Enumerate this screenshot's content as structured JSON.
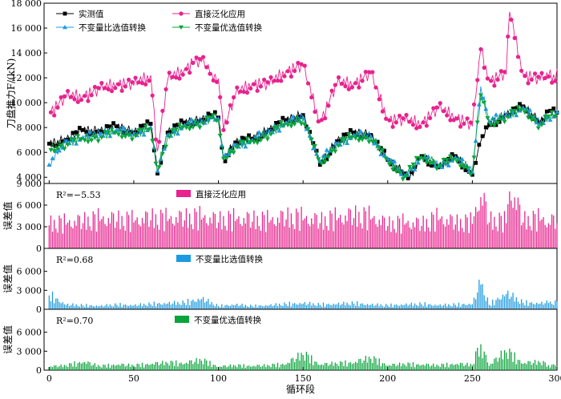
{
  "chart_data": [
    {
      "type": "line",
      "ylabel": "刀盘推力F/(kN)",
      "xlim": [
        -3,
        300
      ],
      "ylim": [
        3500,
        18000
      ],
      "yticks": [
        4000,
        6000,
        8000,
        10000,
        12000,
        14000,
        16000,
        18000
      ],
      "ytick_labels": [
        "4 000",
        "6 000",
        "8 000",
        "10 000",
        "12 000",
        "14 000",
        "16 000",
        "18 000"
      ],
      "legend": [
        "实测值",
        "直接泛化应用",
        "不变量比选值转换",
        "不变量优选值转换"
      ],
      "legend_position": "top",
      "grid": false,
      "colors": {
        "measured": "#000000",
        "direct": "#e8228e",
        "ratio": "#1e9be0",
        "optimal": "#0aa43c"
      },
      "series": [
        {
          "name": "实测值",
          "x": [
            0,
            10,
            20,
            30,
            40,
            50,
            60,
            64,
            70,
            80,
            90,
            96,
            100,
            103,
            110,
            120,
            130,
            140,
            150,
            160,
            170,
            180,
            190,
            200,
            210,
            213,
            220,
            230,
            240,
            250,
            255,
            260,
            270,
            280,
            290,
            295
          ],
          "values": [
            6700,
            7000,
            7800,
            7700,
            8100,
            7600,
            8300,
            4300,
            7600,
            8400,
            8600,
            9000,
            8800,
            5400,
            6800,
            7100,
            7800,
            8600,
            9000,
            5000,
            6900,
            7600,
            7400,
            5400,
            4300,
            3900,
            5700,
            4800,
            5700,
            4200,
            6900,
            8200,
            9000,
            9700,
            8400,
            9200
          ]
        },
        {
          "name": "直接泛化应用",
          "x": [
            0,
            10,
            20,
            30,
            40,
            50,
            60,
            64,
            70,
            80,
            85,
            90,
            96,
            100,
            103,
            110,
            120,
            130,
            140,
            150,
            160,
            170,
            180,
            190,
            200,
            210,
            220,
            230,
            240,
            250,
            255,
            260,
            270,
            272,
            280,
            290,
            295
          ],
          "values": [
            9200,
            10400,
            10600,
            11000,
            11600,
            11400,
            12200,
            6100,
            11800,
            12700,
            13200,
            13300,
            12400,
            11900,
            7800,
            10600,
            11600,
            11400,
            12600,
            12900,
            8400,
            11500,
            11600,
            12300,
            8700,
            8500,
            8400,
            9500,
            8900,
            8100,
            14300,
            11800,
            12300,
            17300,
            12300,
            11800,
            12100
          ]
        },
        {
          "name": "不变量比选值转换",
          "x": [
            0,
            10,
            20,
            30,
            40,
            50,
            60,
            64,
            70,
            80,
            90,
            96,
            100,
            103,
            110,
            120,
            130,
            140,
            150,
            160,
            170,
            180,
            190,
            200,
            210,
            220,
            230,
            240,
            250,
            255,
            260,
            270,
            280,
            290,
            295
          ],
          "values": [
            5000,
            6900,
            7200,
            7500,
            7800,
            7500,
            8000,
            4500,
            7400,
            8200,
            8500,
            8800,
            8700,
            5300,
            6600,
            7000,
            7700,
            8400,
            8800,
            5300,
            6700,
            7400,
            7300,
            5500,
            4100,
            5600,
            4900,
            5600,
            4400,
            11300,
            8500,
            9000,
            9600,
            8300,
            9000
          ]
        },
        {
          "name": "不变量优选值转换",
          "x": [
            0,
            10,
            20,
            30,
            40,
            50,
            60,
            64,
            70,
            80,
            90,
            96,
            100,
            103,
            110,
            120,
            130,
            140,
            150,
            160,
            170,
            180,
            190,
            200,
            210,
            220,
            230,
            240,
            250,
            255,
            260,
            270,
            280,
            290,
            295
          ],
          "values": [
            6300,
            6700,
            7100,
            7300,
            7600,
            7400,
            7900,
            4600,
            7300,
            8100,
            8400,
            8700,
            8500,
            5500,
            6500,
            6900,
            7500,
            8300,
            8700,
            5100,
            6600,
            7300,
            7200,
            5300,
            4100,
            5700,
            5000,
            5500,
            4500,
            10600,
            8300,
            8900,
            9500,
            8200,
            8900
          ]
        }
      ]
    },
    {
      "type": "bar",
      "ylabel": "误差值",
      "ylim": [
        0,
        9000
      ],
      "yticks": [
        0,
        3000,
        6000,
        9000
      ],
      "ytick_labels": [
        "0",
        "3 000",
        "6 000",
        "9 000"
      ],
      "legend": [
        "直接泛化应用"
      ],
      "annotation": "R²=−5.53",
      "series": [
        {
          "name": "直接泛化应用",
          "x": [
            0,
            10,
            20,
            30,
            40,
            50,
            60,
            70,
            80,
            90,
            100,
            110,
            120,
            130,
            140,
            150,
            160,
            170,
            180,
            190,
            200,
            210,
            220,
            230,
            240,
            250,
            255,
            260,
            270,
            272,
            280,
            290,
            295
          ],
          "values": [
            3200,
            3300,
            3500,
            3800,
            3700,
            3600,
            3900,
            3800,
            3900,
            4000,
            3600,
            3800,
            3700,
            3600,
            4000,
            3900,
            3500,
            3900,
            4200,
            4000,
            3100,
            3300,
            3100,
            3900,
            3300,
            3400,
            7100,
            3600,
            3500,
            7900,
            3600,
            3800,
            3500
          ]
        }
      ]
    },
    {
      "type": "bar",
      "ylabel": "误差值",
      "ylim": [
        0,
        9000
      ],
      "yticks": [
        0,
        3000,
        6000
      ],
      "ytick_labels": [
        "0",
        "3 000",
        "6 000"
      ],
      "legend": [
        "不变量比选值转换"
      ],
      "annotation": "R²=0.68",
      "series": [
        {
          "name": "不变量比选值转换",
          "x": [
            0,
            10,
            20,
            30,
            40,
            50,
            60,
            70,
            80,
            90,
            100,
            110,
            120,
            130,
            140,
            150,
            160,
            170,
            180,
            190,
            200,
            210,
            220,
            230,
            240,
            250,
            255,
            260,
            270,
            280,
            290,
            295
          ],
          "values": [
            2200,
            700,
            600,
            500,
            700,
            600,
            800,
            900,
            1000,
            1600,
            500,
            700,
            500,
            600,
            800,
            900,
            700,
            800,
            900,
            700,
            600,
            700,
            800,
            600,
            700,
            800,
            3900,
            700,
            2400,
            1000,
            900,
            1000
          ]
        }
      ]
    },
    {
      "type": "bar",
      "ylabel": "误差值",
      "xlabel": "循环段",
      "xlim": [
        -3,
        300
      ],
      "xticks": [
        0,
        50,
        100,
        150,
        200,
        250,
        300
      ],
      "ylim": [
        0,
        9000
      ],
      "yticks": [
        0,
        3000,
        6000
      ],
      "ytick_labels": [
        "0",
        "3 000",
        "6 000"
      ],
      "legend": [
        "不变量优选值转换"
      ],
      "annotation": "R²=0.70",
      "series": [
        {
          "name": "不变量优选值转换",
          "x": [
            0,
            10,
            20,
            30,
            40,
            50,
            60,
            70,
            80,
            90,
            100,
            110,
            120,
            130,
            140,
            150,
            160,
            170,
            180,
            190,
            200,
            210,
            220,
            230,
            240,
            250,
            255,
            260,
            270,
            280,
            290,
            295
          ],
          "values": [
            500,
            700,
            1200,
            600,
            800,
            700,
            900,
            1100,
            1000,
            1500,
            500,
            700,
            600,
            700,
            900,
            2400,
            800,
            1000,
            1100,
            1800,
            700,
            900,
            800,
            700,
            900,
            800,
            4100,
            700,
            2800,
            1000,
            1200,
            800
          ]
        }
      ]
    }
  ]
}
